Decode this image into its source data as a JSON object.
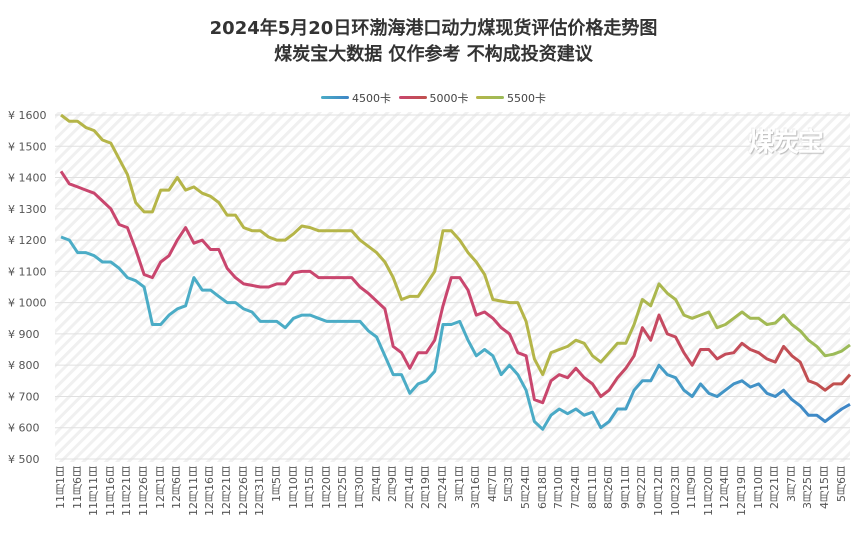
{
  "chart_data": {
    "type": "line",
    "title": "2024年5月20日环渤海港口动力煤现货评估价格走势图",
    "subtitle": "煤炭宝大数据 仅作参考 不构成投资建议",
    "watermark": "煤炭宝",
    "ylim": [
      500,
      1600
    ],
    "yticks": [
      500,
      600,
      700,
      800,
      900,
      1000,
      1100,
      1200,
      1300,
      1400,
      1500,
      1600
    ],
    "ytick_prefix": "¥",
    "grid": true,
    "legend_position": "top-center",
    "x_tick_labels": [
      "11月1日",
      "11月6日",
      "11月11日",
      "11月16日",
      "11月21日",
      "11月26日",
      "12月1日",
      "12月6日",
      "12月11日",
      "12月16日",
      "12月21日",
      "12月26日",
      "12月31日",
      "1月5日",
      "1月10日",
      "1月15日",
      "1月20日",
      "1月25日",
      "1月30日",
      "2月4日",
      "2月9日",
      "2月14日",
      "2月19日",
      "2月24日",
      "3月1日",
      "3月16日",
      "4月7日",
      "5月3日",
      "5月24日",
      "6月18日",
      "7月10日",
      "7月24日",
      "8月11日",
      "8月26日",
      "9月11日",
      "9月22日",
      "10月12日",
      "10月23日",
      "11月9日",
      "11月20日",
      "12月4日",
      "12月19日",
      "1月10日",
      "2月21日",
      "3月7日",
      "3月25日",
      "4月15日",
      "5月6日"
    ],
    "series": [
      {
        "name": "4500卡",
        "color": "#4bacc6",
        "color_end": "#3d85c6",
        "values": [
          1210,
          1200,
          1160,
          1160,
          1150,
          1130,
          1130,
          1110,
          1080,
          1070,
          1050,
          930,
          930,
          960,
          980,
          990,
          1080,
          1040,
          1040,
          1020,
          1000,
          1000,
          980,
          970,
          940,
          940,
          940,
          920,
          950,
          960,
          960,
          950,
          940,
          940,
          940,
          940,
          940,
          910,
          890,
          830,
          770,
          770,
          710,
          740,
          750,
          780,
          930,
          930,
          940,
          880,
          830,
          850,
          830,
          770,
          800,
          770,
          720,
          620,
          595,
          640,
          660,
          645,
          660,
          640,
          650,
          600,
          620,
          660,
          660,
          720,
          750,
          750,
          800,
          770,
          760,
          720,
          700,
          740,
          710,
          700,
          720,
          740,
          750,
          730,
          740,
          710,
          700,
          720,
          690,
          670,
          640,
          640,
          620,
          640,
          660,
          675
        ]
      },
      {
        "name": "5000卡",
        "color": "#c9466e",
        "color_end": "#c0504d",
        "values": [
          1420,
          1380,
          1370,
          1360,
          1350,
          1325,
          1300,
          1250,
          1240,
          1170,
          1090,
          1080,
          1130,
          1150,
          1200,
          1240,
          1190,
          1200,
          1170,
          1170,
          1110,
          1080,
          1060,
          1055,
          1050,
          1050,
          1060,
          1060,
          1095,
          1100,
          1100,
          1080,
          1080,
          1080,
          1080,
          1080,
          1050,
          1030,
          1005,
          980,
          860,
          840,
          790,
          840,
          840,
          880,
          990,
          1080,
          1080,
          1040,
          960,
          970,
          950,
          920,
          900,
          840,
          830,
          690,
          680,
          750,
          770,
          760,
          790,
          760,
          740,
          700,
          720,
          760,
          790,
          830,
          920,
          880,
          960,
          900,
          890,
          840,
          800,
          850,
          850,
          820,
          835,
          840,
          870,
          850,
          840,
          820,
          810,
          860,
          830,
          810,
          750,
          740,
          720,
          740,
          740,
          770
        ]
      },
      {
        "name": "5500卡",
        "color": "#b5b548",
        "color_end": "#9bbb59",
        "values": [
          1600,
          1580,
          1580,
          1560,
          1550,
          1520,
          1510,
          1460,
          1410,
          1320,
          1290,
          1290,
          1360,
          1360,
          1400,
          1360,
          1370,
          1350,
          1340,
          1320,
          1280,
          1280,
          1240,
          1230,
          1230,
          1210,
          1200,
          1200,
          1220,
          1245,
          1240,
          1230,
          1230,
          1230,
          1230,
          1230,
          1200,
          1180,
          1160,
          1130,
          1080,
          1010,
          1020,
          1020,
          1060,
          1100,
          1230,
          1230,
          1200,
          1160,
          1130,
          1090,
          1010,
          1005,
          1000,
          1000,
          940,
          820,
          770,
          840,
          850,
          860,
          880,
          870,
          830,
          810,
          840,
          870,
          870,
          930,
          1010,
          990,
          1060,
          1030,
          1010,
          960,
          950,
          960,
          970,
          920,
          930,
          950,
          970,
          950,
          950,
          930,
          935,
          960,
          930,
          910,
          880,
          860,
          830,
          835,
          845,
          865
        ]
      }
    ]
  }
}
